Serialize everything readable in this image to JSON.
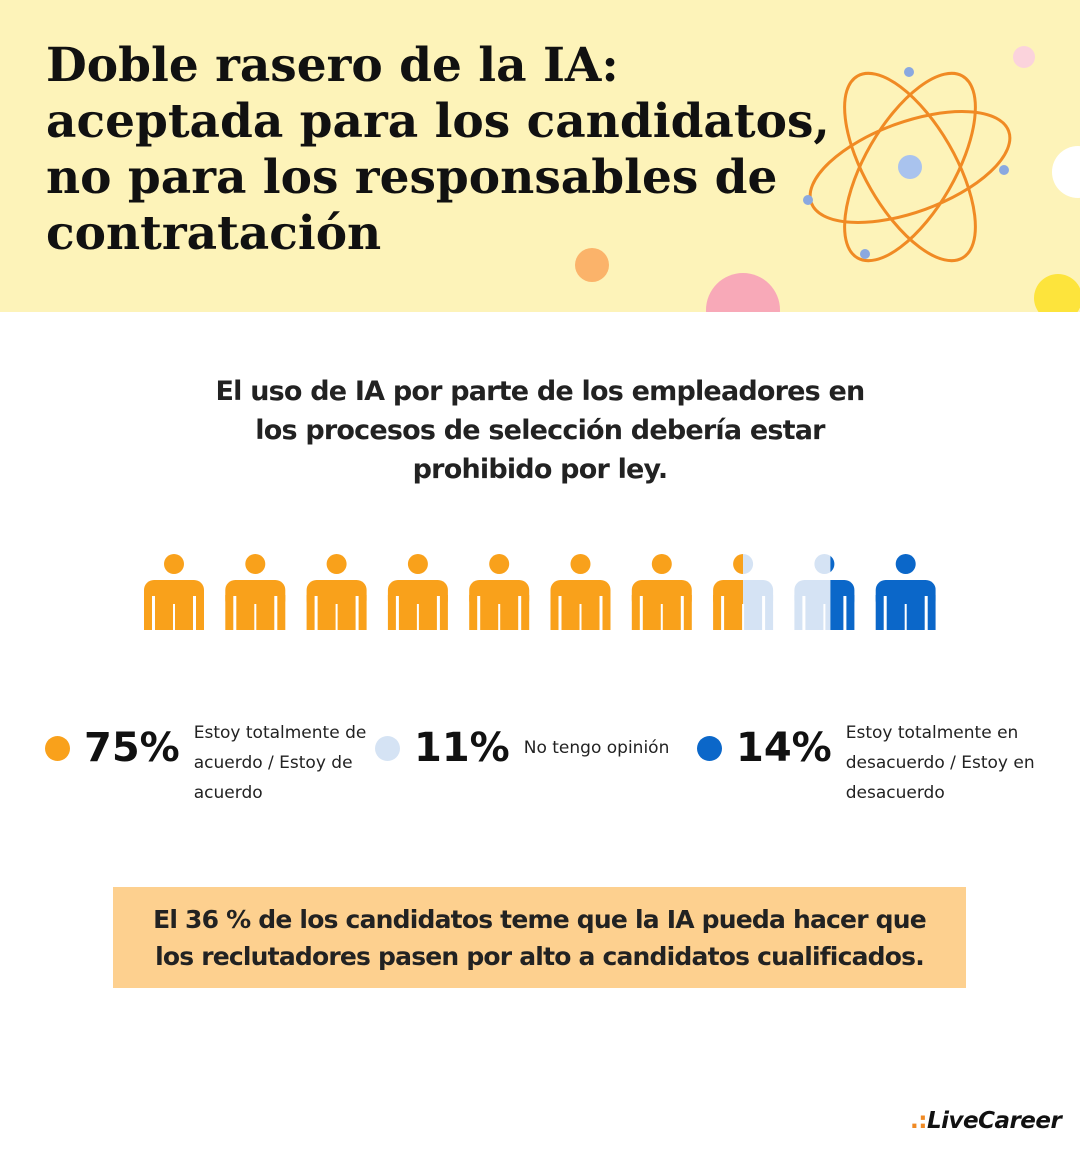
{
  "header": {
    "title": "Doble rasero de la IA: aceptada para los candidatos, no para los responsables de contratación"
  },
  "chart_data": {
    "type": "pictogram",
    "title": "El uso de IA por parte de los empleadores en los procesos de selección debería estar prohibido por ley.",
    "categories": [
      "Estoy totalmente de acuerdo / Estoy de acuerdo",
      "No tengo opinión",
      "Estoy totalmente en desacuerdo / Estoy en desacuerdo"
    ],
    "values": [
      75,
      11,
      14
    ],
    "value_labels": [
      "75%",
      "11%",
      "14%"
    ],
    "colors": [
      "#f9a11b",
      "#d5e3f4",
      "#0b67c9"
    ]
  },
  "note": "El 36 % de los candidatos teme que la IA pueda hacer que los reclutadores pasen por alto a candidatos cualificados.",
  "footer": {
    "logo": "LiveCareer"
  }
}
